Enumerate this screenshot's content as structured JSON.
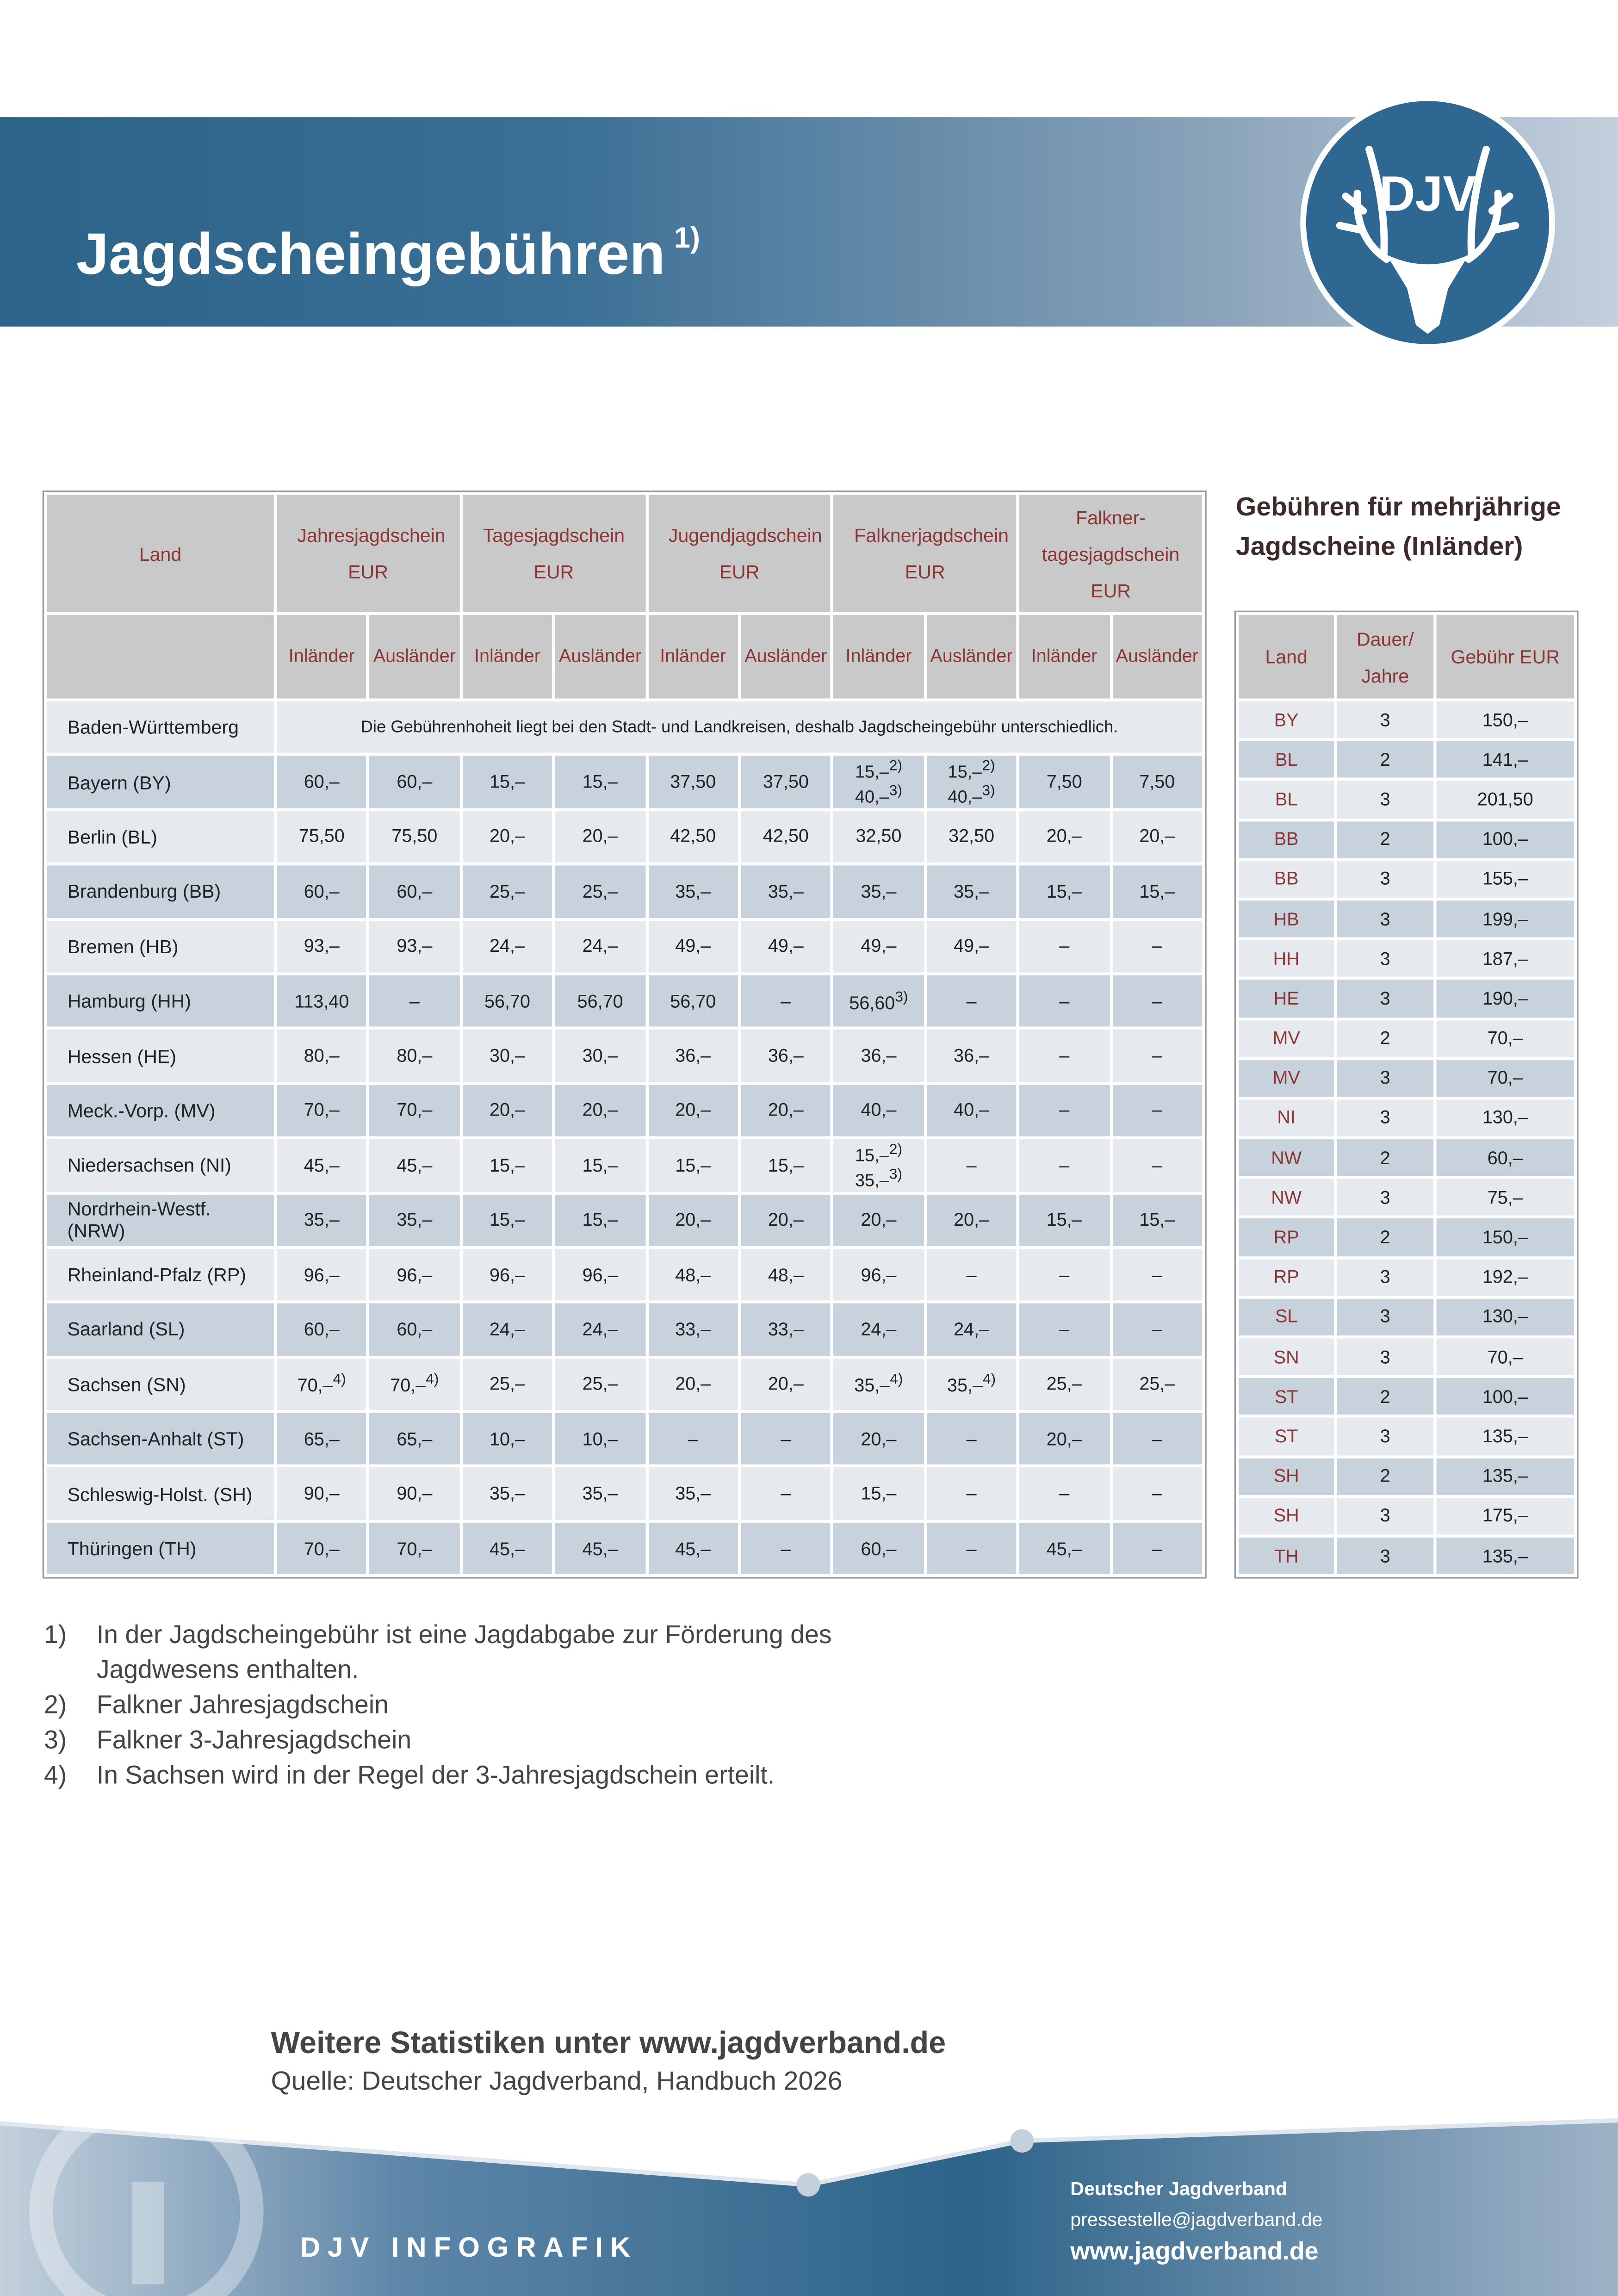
{
  "header": {
    "title": "Jagdscheingebühren",
    "title_note": "1)",
    "logo": "DJV"
  },
  "table": {
    "land_header": "Land",
    "groups": [
      {
        "name": "Jahresjagdschein",
        "unit": "EUR"
      },
      {
        "name": "Tagesjagdschein",
        "unit": "EUR"
      },
      {
        "name": "Jugendjagdschein",
        "unit": "EUR"
      },
      {
        "name": "Falknerjagdschein",
        "unit": "EUR"
      },
      {
        "name": "Falkner-tagesjagdschein",
        "unit": "EUR"
      }
    ],
    "subheaders": [
      "Inländer",
      "Ausländer",
      "Inländer",
      "Ausländer",
      "Inländer",
      "Ausländer",
      "Inländer",
      "Ausländer",
      "Inländer",
      "Ausländer"
    ],
    "rows": [
      {
        "land": "Baden-Württemberg",
        "note": "Die Gebührenhoheit liegt bei den Stadt- und Landkreisen, deshalb Jagdscheingebühr unterschiedlich."
      },
      {
        "land": "Bayern (BY)",
        "cells": [
          "60,–",
          "60,–",
          "15,–",
          "15,–",
          "37,50",
          "37,50",
          [
            {
              "text": "15,–",
              "note": "2)"
            },
            {
              "text": "40,–",
              "note": "3)"
            }
          ],
          [
            {
              "text": "15,–",
              "note": "2)"
            },
            {
              "text": "40,–",
              "note": "3)"
            }
          ],
          "7,50",
          "7,50"
        ]
      },
      {
        "land": "Berlin (BL)",
        "cells": [
          "75,50",
          "75,50",
          "20,–",
          "20,–",
          "42,50",
          "42,50",
          "32,50",
          "32,50",
          "20,–",
          "20,–"
        ]
      },
      {
        "land": "Brandenburg (BB)",
        "cells": [
          "60,–",
          "60,–",
          "25,–",
          "25,–",
          "35,–",
          "35,–",
          "35,–",
          "35,–",
          "15,–",
          "15,–"
        ]
      },
      {
        "land": "Bremen (HB)",
        "cells": [
          "93,–",
          "93,–",
          "24,–",
          "24,–",
          "49,–",
          "49,–",
          "49,–",
          "49,–",
          "–",
          "–"
        ]
      },
      {
        "land": "Hamburg (HH)",
        "cells": [
          "113,40",
          "–",
          "56,70",
          "56,70",
          "56,70",
          "–",
          {
            "text": "56,60",
            "note": "3)"
          },
          "–",
          "–",
          "–"
        ]
      },
      {
        "land": "Hessen (HE)",
        "cells": [
          "80,–",
          "80,–",
          "30,–",
          "30,–",
          "36,–",
          "36,–",
          "36,–",
          "36,–",
          "–",
          "–"
        ]
      },
      {
        "land": "Meck.-Vorp. (MV)",
        "cells": [
          "70,–",
          "70,–",
          "20,–",
          "20,–",
          "20,–",
          "20,–",
          "40,–",
          "40,–",
          "–",
          "–"
        ]
      },
      {
        "land": "Niedersachsen (NI)",
        "cells": [
          "45,–",
          "45,–",
          "15,–",
          "15,–",
          "15,–",
          "15,–",
          [
            {
              "text": "15,–",
              "note": "2)"
            },
            {
              "text": "35,–",
              "note": "3)"
            }
          ],
          "–",
          "–",
          "–"
        ]
      },
      {
        "land": "Nordrhein-Westf. (NRW)",
        "cells": [
          "35,–",
          "35,–",
          "15,–",
          "15,–",
          "20,–",
          "20,–",
          "20,–",
          "20,–",
          "15,–",
          "15,–"
        ]
      },
      {
        "land": "Rheinland-Pfalz (RP)",
        "cells": [
          "96,–",
          "96,–",
          "96,–",
          "96,–",
          "48,–",
          "48,–",
          "96,–",
          "–",
          "–",
          "–"
        ]
      },
      {
        "land": "Saarland (SL)",
        "cells": [
          "60,–",
          "60,–",
          "24,–",
          "24,–",
          "33,–",
          "33,–",
          "24,–",
          "24,–",
          "–",
          "–"
        ]
      },
      {
        "land": "Sachsen (SN)",
        "cells": [
          {
            "text": "70,–",
            "note": "4)"
          },
          {
            "text": "70,–",
            "note": "4)"
          },
          "25,–",
          "25,–",
          "20,–",
          "20,–",
          {
            "text": "35,–",
            "note": "4)"
          },
          {
            "text": "35,–",
            "note": "4)"
          },
          "25,–",
          "25,–"
        ]
      },
      {
        "land": "Sachsen-Anhalt (ST)",
        "cells": [
          "65,–",
          "65,–",
          "10,–",
          "10,–",
          "–",
          "–",
          "20,–",
          "–",
          "20,–",
          "–"
        ]
      },
      {
        "land": "Schleswig-Holst. (SH)",
        "cells": [
          "90,–",
          "90,–",
          "35,–",
          "35,–",
          "35,–",
          "–",
          "15,–",
          "–",
          "–",
          "–"
        ]
      },
      {
        "land": "Thüringen (TH)",
        "cells": [
          "70,–",
          "70,–",
          "45,–",
          "45,–",
          "45,–",
          "–",
          "60,–",
          "–",
          "45,–",
          "–"
        ]
      }
    ]
  },
  "multi": {
    "title": "Gebühren für mehrjährige Jagdscheine (Inländer)",
    "headers": [
      "Land",
      "Dauer/ Jahre",
      "Gebühr EUR"
    ],
    "rows": [
      [
        "BY",
        3,
        "150,–"
      ],
      [
        "BL",
        2,
        "141,–"
      ],
      [
        "BL",
        3,
        "201,50"
      ],
      [
        "BB",
        2,
        "100,–"
      ],
      [
        "BB",
        3,
        "155,–"
      ],
      [
        "HB",
        3,
        "199,–"
      ],
      [
        "HH",
        3,
        "187,–"
      ],
      [
        "HE",
        3,
        "190,–"
      ],
      [
        "MV",
        2,
        "70,–"
      ],
      [
        "MV",
        3,
        "70,–"
      ],
      [
        "NI",
        3,
        "130,–"
      ],
      [
        "NW",
        2,
        "60,–"
      ],
      [
        "NW",
        3,
        "75,–"
      ],
      [
        "RP",
        2,
        "150,–"
      ],
      [
        "RP",
        3,
        "192,–"
      ],
      [
        "SL",
        3,
        "130,–"
      ],
      [
        "SN",
        3,
        "70,–"
      ],
      [
        "ST",
        2,
        "100,–"
      ],
      [
        "ST",
        3,
        "135,–"
      ],
      [
        "SH",
        2,
        "135,–"
      ],
      [
        "SH",
        3,
        "175,–"
      ],
      [
        "TH",
        3,
        "135,–"
      ]
    ]
  },
  "footnotes": [
    {
      "num": "1)",
      "text": "In der Jagdscheingebühr ist eine Jagdabgabe zur Förderung des Jagdwesens enthalten."
    },
    {
      "num": "2)",
      "text": "Falkner Jahresjagdschein"
    },
    {
      "num": "3)",
      "text": "Falkner 3-Jahresjagdschein"
    },
    {
      "num": "4)",
      "text": "In Sachsen wird in der Regel der 3-Jahresjagdschein erteilt."
    }
  ],
  "footer": {
    "more": "Weitere Statistiken unter www.jagdverband.de",
    "source": "Quelle: Deutscher Jagdverband, Handbuch 2026",
    "brand": "DJV INFOGRAFIK",
    "org": "Deutscher Jagdverband",
    "email": "pressestelle@jagdverband.de",
    "web": "www.jagdverband.de"
  }
}
